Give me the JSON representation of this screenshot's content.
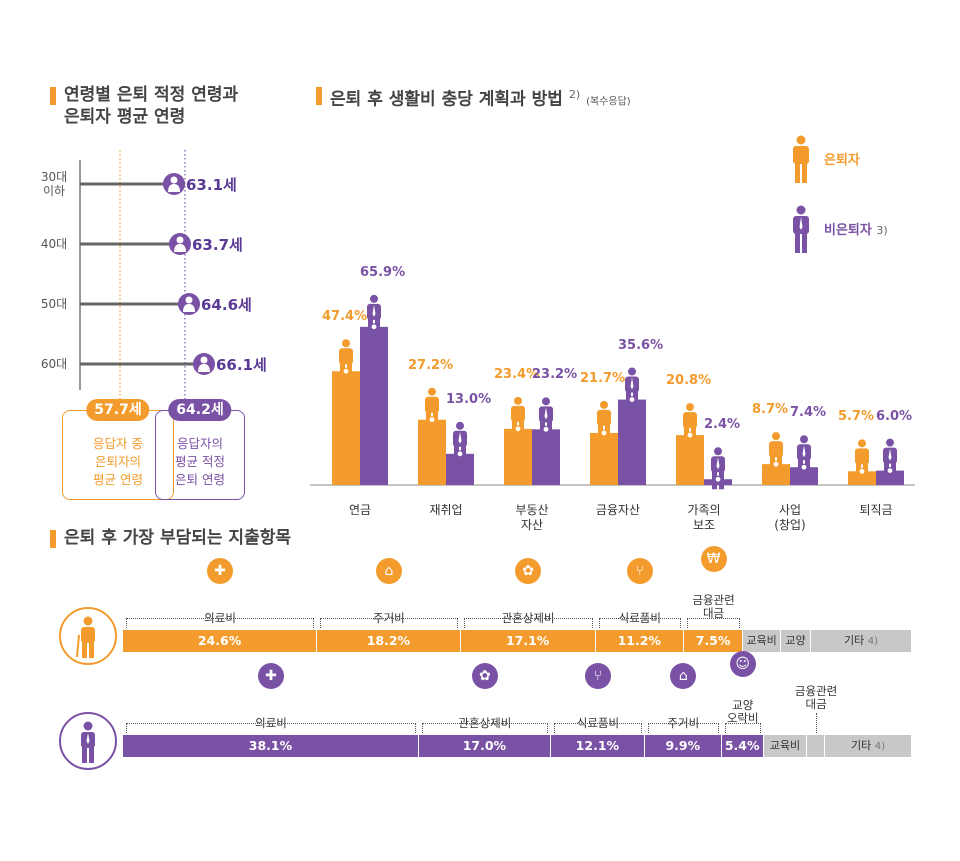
{
  "section1": {
    "title_line1": "연령별 은퇴 적정 연령과",
    "title_line2": "은퇴자 평균 연령"
  },
  "section2": {
    "title": "은퇴 후 생활비 충당 계획과 방법",
    "sup": "2)",
    "note": "(복수응답)"
  },
  "section3": {
    "title": "은퇴 후 가장 부담되는 지출항목"
  },
  "legend": {
    "retired": "은퇴자",
    "nonretired": "비은퇴자",
    "nonretired_note": "3)"
  },
  "colors": {
    "orange": "#f39c2d",
    "purple": "#7a52a5",
    "grey": "#c8c8c8"
  },
  "chart_data": [
    {
      "type": "dot",
      "title": "연령별 은퇴 적정 연령과 은퇴자 평균 연령",
      "categories": [
        "30대 이하",
        "40대",
        "50대",
        "60대"
      ],
      "values": [
        63.1,
        63.7,
        64.6,
        66.1
      ],
      "value_labels": [
        "63.1세",
        "63.7세",
        "64.6세",
        "66.1세"
      ],
      "reference_lines": [
        {
          "value": 57.7,
          "label": "57.7세",
          "text_lines": [
            "응답자 중",
            "은퇴자의",
            "평균 연령"
          ]
        },
        {
          "value": 64.2,
          "label": "64.2세",
          "text_lines": [
            "응답자의",
            "평균 적정",
            "은퇴 연령"
          ]
        }
      ]
    },
    {
      "type": "bar",
      "title": "은퇴 후 생활비 충당 계획과 방법",
      "categories": [
        "연금",
        "재취업",
        "부동산 자산",
        "금융자산",
        "가족의 보조",
        "사업 (창업)",
        "퇴직금"
      ],
      "category_lines": [
        [
          "연금"
        ],
        [
          "재취업"
        ],
        [
          "부동산",
          "자산"
        ],
        [
          "금융자산"
        ],
        [
          "가족의",
          "보조"
        ],
        [
          "사업",
          "(창업)"
        ],
        [
          "퇴직금"
        ]
      ],
      "series": [
        {
          "name": "은퇴자",
          "values": [
            47.4,
            27.2,
            23.4,
            21.7,
            20.8,
            8.7,
            5.7
          ]
        },
        {
          "name": "비은퇴자",
          "values": [
            65.9,
            13.0,
            23.2,
            35.6,
            2.4,
            7.4,
            6.0
          ]
        }
      ],
      "unit": "%",
      "ylim": [
        0,
        70
      ]
    },
    {
      "type": "stacked_bar",
      "title": "은퇴 후 가장 부담되는 지출항목",
      "rows": [
        {
          "name": "은퇴자",
          "segments": [
            {
              "label": "의료비",
              "value": 24.6,
              "value_text": "24.6%",
              "icon": "medical-kit-icon"
            },
            {
              "label": "주거비",
              "value": 18.2,
              "value_text": "18.2%",
              "icon": "house-icon"
            },
            {
              "label": "관혼상제비",
              "value": 17.1,
              "value_text": "17.1%",
              "icon": "flower-icon"
            },
            {
              "label": "식료품비",
              "value": 11.2,
              "value_text": "11.2%",
              "icon": "spoon-fork-icon"
            },
            {
              "label": "금융관련\n대금",
              "value": 7.5,
              "value_text": "7.5%",
              "icon": "won-icon"
            },
            {
              "label": "교육비",
              "value": 4.8,
              "value_text": "교육비",
              "grey": true
            },
            {
              "label": "교양",
              "value": 3.8,
              "value_text": "교양",
              "grey": true
            },
            {
              "label": "기타",
              "value": 12.8,
              "value_text": "기타",
              "note": "4)",
              "grey": true
            }
          ]
        },
        {
          "name": "비은퇴자",
          "segments": [
            {
              "label": "의료비",
              "value": 38.1,
              "value_text": "38.1%",
              "icon": "medical-kit-icon"
            },
            {
              "label": "관혼상제비",
              "value": 17.0,
              "value_text": "17.0%",
              "icon": "flower-icon"
            },
            {
              "label": "식료품비",
              "value": 12.1,
              "value_text": "12.1%",
              "icon": "spoon-fork-icon"
            },
            {
              "label": "주거비",
              "value": 9.9,
              "value_text": "9.9%",
              "icon": "house-icon"
            },
            {
              "label": "교양\n오락비",
              "value": 5.4,
              "value_text": "5.4%",
              "icon": "theater-mask-icon"
            },
            {
              "label": "교육비",
              "value": 5.6,
              "value_text": "교육비",
              "grey": true
            },
            {
              "label": "금융관련\n대금",
              "value": 2.3,
              "value_text": "",
              "grey": true,
              "label_above": true
            },
            {
              "label": "기타",
              "value": 11.2,
              "value_text": "기타",
              "note": "4)",
              "grey": true
            }
          ]
        }
      ]
    }
  ]
}
